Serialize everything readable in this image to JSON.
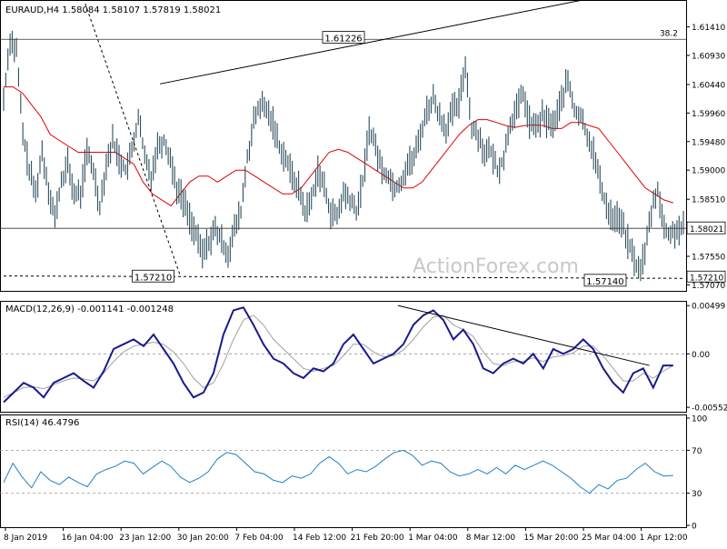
{
  "chart_data": [
    {
      "type": "candlestick",
      "panel": "price",
      "title": "EURAUD,H4  1.58084 1.58107 1.57819 1.58021",
      "symbol": "EURAUD",
      "timeframe": "H4",
      "ohlc_last": {
        "open": 1.58084,
        "high": 1.58107,
        "low": 1.57819,
        "close": 1.58021
      },
      "watermark": "ActionForex.com",
      "ylim": [
        1.57,
        1.618
      ],
      "y_ticks": [
        1.6141,
        1.6093,
        1.6044,
        1.5996,
        1.5948,
        1.59,
        1.5851,
        1.5803,
        1.5755,
        1.5707
      ],
      "y_tick_labels": [
        "1.61410",
        "1.60930",
        "1.60440",
        "1.59960",
        "1.59480",
        "1.59000",
        "1.58510",
        "1.58030",
        "1.57550",
        "1.57070"
      ],
      "current_price_label": "1.58021",
      "current_price": 1.58021,
      "level_label_right": "1.57210",
      "levels": [
        {
          "label": "38.2",
          "value": 1.612,
          "style": "solid"
        },
        {
          "label": "",
          "value": 1.58021,
          "style": "solid"
        }
      ],
      "annotations": [
        {
          "text": "1.61226",
          "value": 1.61226,
          "x_frac": 0.5
        },
        {
          "text": "1.57210",
          "value": 1.5721,
          "x_frac": 0.22
        },
        {
          "text": "1.57140",
          "value": 1.5714,
          "x_frac": 0.885
        }
      ],
      "moving_average_color": "#e00000",
      "bar_color": "#2e4d5c",
      "series_close": [
        1.602,
        1.612,
        1.61,
        1.596,
        1.59,
        1.586,
        1.593,
        1.587,
        1.582,
        1.588,
        1.591,
        1.586,
        1.586,
        1.593,
        1.59,
        1.584,
        1.591,
        1.595,
        1.592,
        1.59,
        1.593,
        1.599,
        1.592,
        1.589,
        1.594,
        1.595,
        1.592,
        1.587,
        1.585,
        1.582,
        1.579,
        1.576,
        1.578,
        1.58,
        1.578,
        1.576,
        1.58,
        1.583,
        1.592,
        1.598,
        1.601,
        1.6,
        1.598,
        1.594,
        1.592,
        1.589,
        1.587,
        1.583,
        1.585,
        1.59,
        1.587,
        1.583,
        1.582,
        1.586,
        1.585,
        1.583,
        1.588,
        1.597,
        1.594,
        1.59,
        1.589,
        1.587,
        1.588,
        1.591,
        1.592,
        1.596,
        1.6,
        1.602,
        1.599,
        1.597,
        1.6,
        1.601,
        1.608,
        1.597,
        1.596,
        1.593,
        1.593,
        1.59,
        1.592,
        1.598,
        1.6,
        1.603,
        1.598,
        1.597,
        1.599,
        1.598,
        1.598,
        1.602,
        1.605,
        1.6,
        1.599,
        1.596,
        1.593,
        1.588,
        1.584,
        1.582,
        1.582,
        1.579,
        1.576,
        1.573,
        1.576,
        1.583,
        1.587,
        1.58,
        1.579,
        1.58,
        1.5802
      ],
      "series_ma": [
        1.604,
        1.604,
        1.603,
        1.601,
        1.599,
        1.596,
        1.595,
        1.594,
        1.593,
        1.593,
        1.593,
        1.593,
        1.593,
        1.592,
        1.591,
        1.588,
        1.586,
        1.585,
        1.584,
        1.586,
        1.588,
        1.589,
        1.589,
        1.588,
        1.589,
        1.59,
        1.59,
        1.589,
        1.588,
        1.587,
        1.586,
        1.586,
        1.587,
        1.589,
        1.591,
        1.593,
        1.5935,
        1.593,
        1.592,
        1.591,
        1.59,
        1.589,
        1.588,
        1.587,
        1.587,
        1.588,
        1.59,
        1.592,
        1.594,
        1.596,
        1.5975,
        1.5985,
        1.5985,
        1.598,
        1.5975,
        1.5972,
        1.5975,
        1.5976,
        1.5975,
        1.597,
        1.597,
        1.598,
        1.598,
        1.5975,
        1.597,
        1.595,
        1.593,
        1.591,
        1.589,
        1.587,
        1.586,
        1.585,
        1.5845
      ],
      "trendlines": [
        {
          "name": "upper-channel",
          "from": {
            "t": 0.23,
            "v": 1.6045
          },
          "to": {
            "t": 0.86,
            "v": 1.6188
          },
          "style": "solid"
        },
        {
          "name": "falling-dashed",
          "from": {
            "t": 0.12,
            "v": 1.618
          },
          "to": {
            "t": 0.26,
            "v": 1.5722
          },
          "style": "dashed"
        },
        {
          "name": "support-72",
          "from": {
            "t": 0.0,
            "v": 1.5722
          },
          "to": {
            "t": 1.0,
            "v": 1.5718
          },
          "style": "dashed"
        }
      ]
    },
    {
      "type": "line",
      "panel": "macd",
      "title": "MACD(12,26,9) -0.001141 -0.001248",
      "ylim": [
        -0.0058,
        0.0052
      ],
      "y_ticks": [
        0.00499,
        0.0,
        -0.005528
      ],
      "y_tick_labels": [
        "0.00499",
        "0.00",
        "-0.005528"
      ],
      "series_main": [
        -0.005,
        -0.004,
        -0.003,
        -0.0035,
        -0.0045,
        -0.003,
        -0.0025,
        -0.002,
        -0.0028,
        -0.0035,
        -0.0018,
        0.0005,
        0.001,
        0.0015,
        0.0008,
        0.002,
        0.0005,
        -0.001,
        -0.003,
        -0.0045,
        -0.004,
        -0.002,
        0.002,
        0.0045,
        0.0048,
        0.003,
        0.001,
        -0.0005,
        -0.001,
        -0.002,
        -0.0025,
        -0.0015,
        -0.0018,
        -0.001,
        0.001,
        0.002,
        0.0005,
        -0.001,
        -0.0005,
        0.0,
        0.001,
        0.003,
        0.004,
        0.0045,
        0.0035,
        0.0015,
        0.0025,
        0.001,
        -0.0015,
        -0.002,
        -0.001,
        -0.0005,
        -0.001,
        0.0,
        -0.0015,
        0.0005,
        0.0,
        0.0005,
        0.0015,
        0.0005,
        -0.0015,
        -0.003,
        -0.004,
        -0.002,
        -0.0015,
        -0.0035,
        -0.0012,
        -0.0012
      ],
      "series_signal": [
        -0.0045,
        -0.004,
        -0.0035,
        -0.0034,
        -0.0036,
        -0.0032,
        -0.0028,
        -0.0025,
        -0.0026,
        -0.0028,
        -0.002,
        -0.0008,
        0.0002,
        0.0008,
        0.001,
        0.0012,
        0.001,
        0.0002,
        -0.001,
        -0.0025,
        -0.0035,
        -0.003,
        -0.001,
        0.0015,
        0.0035,
        0.004,
        0.003,
        0.0015,
        0.0005,
        -0.0005,
        -0.0015,
        -0.0018,
        -0.0015,
        -0.0012,
        -0.0002,
        0.001,
        0.001,
        0.0002,
        -0.0003,
        -0.0002,
        0.0004,
        0.0015,
        0.0028,
        0.0038,
        0.004,
        0.003,
        0.0025,
        0.0018,
        0.0002,
        -0.001,
        -0.0012,
        -0.0008,
        -0.0008,
        -0.0004,
        -0.0008,
        -0.0003,
        -0.0002,
        0.0001,
        0.0008,
        0.0008,
        -0.0002,
        -0.0015,
        -0.0028,
        -0.0028,
        -0.002,
        -0.0025,
        -0.0018,
        -0.0012
      ],
      "main_color": "#1a1a8c",
      "signal_color": "#a0a0a0",
      "trendlines": [
        {
          "name": "macd-resistance",
          "from": {
            "t": 0.58,
            "v": 0.005
          },
          "to": {
            "t": 0.95,
            "v": -0.0012
          },
          "style": "solid"
        }
      ]
    },
    {
      "type": "line",
      "panel": "rsi",
      "title": "RSI(14) 46.4796",
      "ylim": [
        0,
        100
      ],
      "y_ticks": [
        100,
        70,
        30,
        0
      ],
      "y_tick_labels": [
        "100",
        "70",
        "30",
        "0"
      ],
      "levels": [
        70,
        30
      ],
      "series": [
        40,
        58,
        45,
        35,
        50,
        42,
        38,
        45,
        40,
        36,
        48,
        52,
        55,
        60,
        58,
        48,
        54,
        60,
        55,
        45,
        40,
        44,
        50,
        62,
        68,
        66,
        58,
        50,
        48,
        42,
        40,
        46,
        44,
        48,
        58,
        64,
        58,
        48,
        52,
        50,
        55,
        62,
        68,
        70,
        65,
        56,
        60,
        58,
        50,
        46,
        48,
        52,
        48,
        54,
        48,
        56,
        52,
        56,
        60,
        56,
        50,
        44,
        36,
        30,
        38,
        34,
        42,
        44,
        52,
        58,
        50,
        46,
        46.5
      ],
      "line_color": "#1e7fc8"
    }
  ],
  "x_axis": {
    "labels": [
      "8 Jan 2019",
      "16 Jan 04:00",
      "23 Jan 12:00",
      "30 Jan 20:00",
      "7 Feb 04:00",
      "14 Feb 12:00",
      "21 Feb 20:00",
      "1 Mar 04:00",
      "8 Mar 12:00",
      "15 Mar 20:00",
      "25 Mar 04:00",
      "1 Apr 12:00"
    ]
  }
}
